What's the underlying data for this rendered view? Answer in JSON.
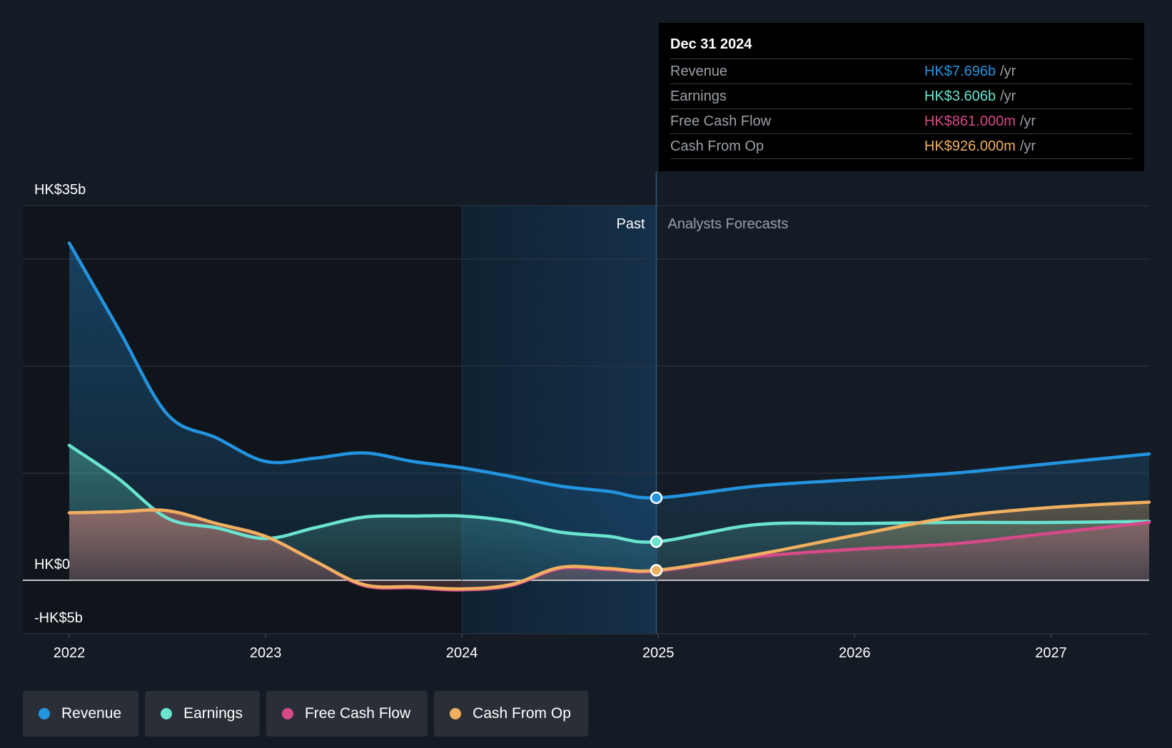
{
  "tooltip": {
    "date": "Dec 31 2024",
    "rows": [
      {
        "label": "Revenue",
        "value": "HK$7.696b",
        "unit": "/yr",
        "color": "#2394df"
      },
      {
        "label": "Earnings",
        "value": "HK$3.606b",
        "unit": "/yr",
        "color": "#6ae4cf"
      },
      {
        "label": "Free Cash Flow",
        "value": "HK$861.000m",
        "unit": "/yr",
        "color": "#d64a89"
      },
      {
        "label": "Cash From Op",
        "value": "HK$926.000m",
        "unit": "/yr",
        "color": "#f0b060"
      }
    ]
  },
  "regions": {
    "past": "Past",
    "forecast": "Analysts Forecasts"
  },
  "legend": [
    {
      "label": "Revenue",
      "color": "#2394df"
    },
    {
      "label": "Earnings",
      "color": "#6ae4cf"
    },
    {
      "label": "Free Cash Flow",
      "color": "#d64a89"
    },
    {
      "label": "Cash From Op",
      "color": "#f0b060"
    }
  ],
  "chart_data": {
    "type": "line",
    "title": "",
    "xlabel": "",
    "ylabel": "",
    "y_tick_labels": [
      {
        "value": 35,
        "label": "HK$35b"
      },
      {
        "value": 0,
        "label": "HK$0"
      },
      {
        "value": -5,
        "label": "-HK$5b"
      }
    ],
    "ylim": [
      -5,
      35
    ],
    "xlim": [
      2022.0,
      2027.5
    ],
    "x_ticks": [
      2022,
      2023,
      2024,
      2025,
      2026,
      2027
    ],
    "gridlines_y": [
      35,
      30,
      20,
      10,
      0,
      -5
    ],
    "past_end": 2024.99,
    "highlight_start": 2024.0,
    "series": [
      {
        "name": "Revenue",
        "color": "#2394df",
        "points": [
          [
            2022.0,
            31.5
          ],
          [
            2022.25,
            23.5
          ],
          [
            2022.5,
            15.5
          ],
          [
            2022.75,
            13.3
          ],
          [
            2023.0,
            11.1
          ],
          [
            2023.25,
            11.4
          ],
          [
            2023.5,
            11.9
          ],
          [
            2023.75,
            11.1
          ],
          [
            2024.0,
            10.5
          ],
          [
            2024.25,
            9.7
          ],
          [
            2024.5,
            8.8
          ],
          [
            2024.75,
            8.3
          ],
          [
            2024.99,
            7.7
          ],
          [
            2025.5,
            8.8
          ],
          [
            2026.0,
            9.4
          ],
          [
            2026.5,
            10.0
          ],
          [
            2027.0,
            10.9
          ],
          [
            2027.5,
            11.8
          ]
        ]
      },
      {
        "name": "Earnings",
        "color": "#6ae4cf",
        "points": [
          [
            2022.0,
            12.6
          ],
          [
            2022.25,
            9.5
          ],
          [
            2022.5,
            5.8
          ],
          [
            2022.75,
            4.9
          ],
          [
            2023.0,
            3.9
          ],
          [
            2023.25,
            4.9
          ],
          [
            2023.5,
            5.9
          ],
          [
            2023.75,
            6.0
          ],
          [
            2024.0,
            6.0
          ],
          [
            2024.25,
            5.5
          ],
          [
            2024.5,
            4.5
          ],
          [
            2024.75,
            4.1
          ],
          [
            2024.99,
            3.6
          ],
          [
            2025.5,
            5.2
          ],
          [
            2026.0,
            5.3
          ],
          [
            2026.5,
            5.4
          ],
          [
            2027.0,
            5.4
          ],
          [
            2027.5,
            5.5
          ]
        ]
      },
      {
        "name": "Free Cash Flow",
        "color": "#d64a89",
        "points": [
          [
            2022.0,
            6.3
          ],
          [
            2022.25,
            6.4
          ],
          [
            2022.5,
            6.5
          ],
          [
            2022.75,
            5.3
          ],
          [
            2023.0,
            4.1
          ],
          [
            2023.25,
            1.8
          ],
          [
            2023.5,
            -0.5
          ],
          [
            2023.75,
            -0.7
          ],
          [
            2024.0,
            -0.9
          ],
          [
            2024.25,
            -0.5
          ],
          [
            2024.5,
            1.1
          ],
          [
            2024.75,
            1.0
          ],
          [
            2024.99,
            0.86
          ],
          [
            2025.5,
            2.2
          ],
          [
            2026.0,
            2.9
          ],
          [
            2026.5,
            3.4
          ],
          [
            2027.0,
            4.4
          ],
          [
            2027.5,
            5.4
          ]
        ]
      },
      {
        "name": "Cash From Op",
        "color": "#f0b060",
        "points": [
          [
            2022.0,
            6.3
          ],
          [
            2022.25,
            6.4
          ],
          [
            2022.5,
            6.5
          ],
          [
            2022.75,
            5.3
          ],
          [
            2023.0,
            4.1
          ],
          [
            2023.25,
            1.8
          ],
          [
            2023.5,
            -0.4
          ],
          [
            2023.75,
            -0.6
          ],
          [
            2024.0,
            -0.8
          ],
          [
            2024.25,
            -0.4
          ],
          [
            2024.5,
            1.2
          ],
          [
            2024.75,
            1.1
          ],
          [
            2024.99,
            0.93
          ],
          [
            2025.5,
            2.4
          ],
          [
            2026.0,
            4.2
          ],
          [
            2026.5,
            5.9
          ],
          [
            2027.0,
            6.8
          ],
          [
            2027.5,
            7.3
          ]
        ]
      }
    ],
    "markers": [
      {
        "series": "Revenue",
        "x": 2024.99,
        "y": 7.7
      },
      {
        "series": "Earnings",
        "x": 2024.99,
        "y": 3.6
      },
      {
        "series": "Cash From Op",
        "x": 2024.99,
        "y": 0.93
      }
    ]
  }
}
